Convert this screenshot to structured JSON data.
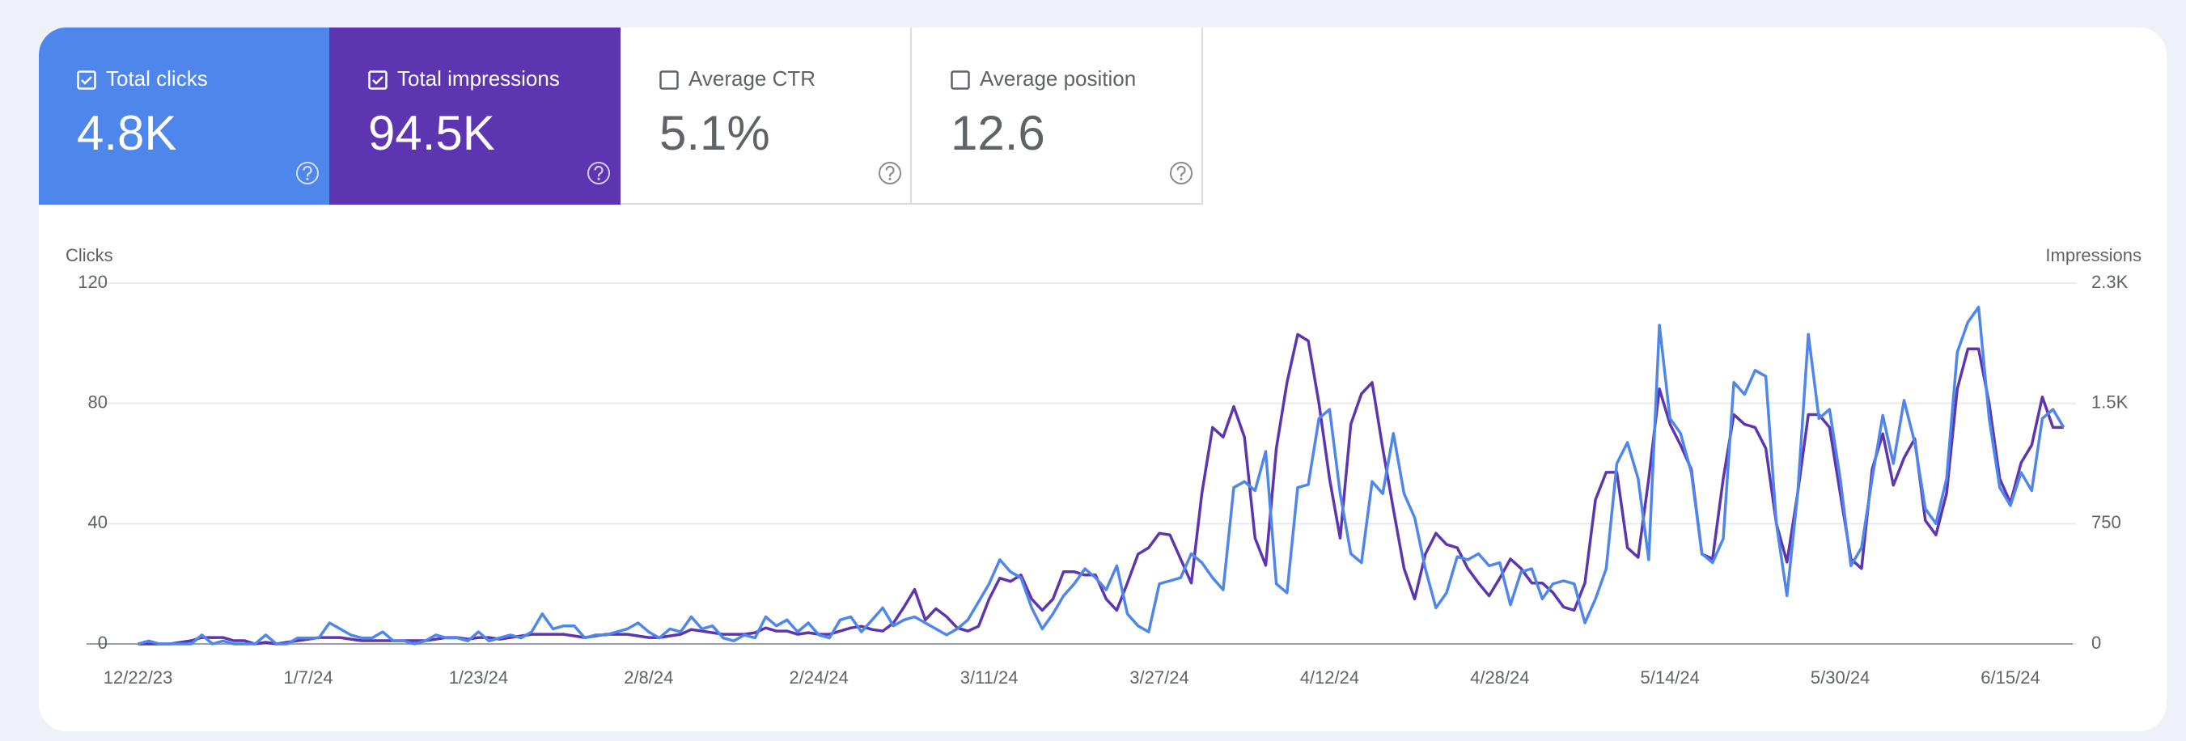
{
  "cards": [
    {
      "label": "Total clicks",
      "value": "4.8K",
      "checked": true
    },
    {
      "label": "Total impressions",
      "value": "94.5K",
      "checked": true
    },
    {
      "label": "Average CTR",
      "value": "5.1%",
      "checked": false
    },
    {
      "label": "Average position",
      "value": "12.6",
      "checked": false
    }
  ],
  "chart_data": {
    "type": "line",
    "y_label": "Clicks",
    "y2_label": "Impressions",
    "categories": [
      "12/22/23",
      null,
      null,
      null,
      null,
      null,
      null,
      null,
      null,
      null,
      null,
      null,
      null,
      null,
      null,
      null,
      "1/7/24",
      null,
      null,
      null,
      null,
      null,
      null,
      null,
      null,
      null,
      null,
      null,
      null,
      null,
      null,
      null,
      "1/23/24",
      null,
      null,
      null,
      null,
      null,
      null,
      null,
      null,
      null,
      null,
      null,
      null,
      null,
      null,
      null,
      "2/8/24",
      null,
      null,
      null,
      null,
      null,
      null,
      null,
      null,
      null,
      null,
      null,
      null,
      null,
      null,
      null,
      "2/24/24",
      null,
      null,
      null,
      null,
      null,
      null,
      null,
      null,
      null,
      null,
      null,
      null,
      null,
      null,
      null,
      "3/11/24",
      null,
      null,
      null,
      null,
      null,
      null,
      null,
      null,
      null,
      null,
      null,
      null,
      null,
      null,
      null,
      "3/27/24",
      null,
      null,
      null,
      null,
      null,
      null,
      null,
      null,
      null,
      null,
      null,
      null,
      null,
      null,
      null,
      "4/12/24",
      null,
      null,
      null,
      null,
      null,
      null,
      null,
      null,
      null,
      null,
      null,
      null,
      null,
      null,
      null,
      "4/28/24",
      null,
      null,
      null,
      null,
      null,
      null,
      null,
      null,
      null,
      null,
      null,
      null,
      null,
      null,
      null,
      "5/14/24",
      null,
      null,
      null,
      null,
      null,
      null,
      null,
      null,
      null,
      null,
      null,
      null,
      null,
      null,
      null,
      "5/30/24",
      null,
      null,
      null,
      null,
      null,
      null,
      null,
      null,
      null,
      null,
      null,
      null,
      null,
      null,
      null,
      "6/15/24",
      null,
      null,
      null,
      null,
      null
    ],
    "series": [
      {
        "name": "Clicks",
        "color": "#4f86ec",
        "values": [
          0,
          1,
          0,
          0,
          0,
          0,
          3,
          0,
          1,
          0,
          0,
          0,
          3,
          0,
          0,
          2,
          2,
          2,
          7,
          5,
          3,
          2,
          2,
          4,
          1,
          1,
          0,
          1,
          3,
          2,
          2,
          1,
          4,
          1,
          2,
          3,
          2,
          4,
          10,
          5,
          6,
          6,
          2,
          3,
          3,
          4,
          5,
          7,
          4,
          2,
          5,
          4,
          9,
          5,
          6,
          2,
          1,
          3,
          2,
          9,
          6,
          8,
          4,
          7,
          3,
          2,
          8,
          9,
          4,
          8,
          12,
          6,
          8,
          9,
          7,
          5,
          3,
          5,
          8,
          14,
          20,
          28,
          24,
          22,
          12,
          5,
          10,
          16,
          20,
          25,
          22,
          18,
          26,
          10,
          6,
          4,
          20,
          21,
          22,
          30,
          27,
          22,
          18,
          52,
          54,
          51,
          64,
          20,
          17,
          52,
          53,
          75,
          78,
          50,
          30,
          27,
          54,
          50,
          70,
          50,
          42,
          25,
          12,
          17,
          29,
          28,
          30,
          26,
          27,
          13,
          24,
          25,
          15,
          20,
          21,
          20,
          7,
          15,
          25,
          60,
          67,
          55,
          28,
          106,
          75,
          70,
          57,
          30,
          27,
          35,
          87,
          83,
          91,
          89,
          40,
          16,
          50,
          103,
          75,
          78,
          55,
          26,
          32,
          55,
          76,
          60,
          81,
          67,
          45,
          40,
          55,
          97,
          107,
          112,
          75,
          52,
          46,
          57,
          51,
          75,
          78,
          72
        ]
      },
      {
        "name": "Impressions",
        "color": "#5e35b1",
        "axis": "y2",
        "values": [
          0,
          0,
          0,
          0,
          10,
          20,
          40,
          40,
          40,
          20,
          20,
          0,
          10,
          0,
          10,
          20,
          30,
          40,
          40,
          40,
          30,
          20,
          20,
          20,
          20,
          20,
          20,
          20,
          30,
          40,
          40,
          30,
          40,
          40,
          30,
          40,
          50,
          60,
          60,
          60,
          60,
          50,
          40,
          50,
          60,
          60,
          60,
          50,
          40,
          40,
          50,
          60,
          90,
          80,
          70,
          60,
          60,
          60,
          70,
          100,
          80,
          80,
          60,
          70,
          60,
          60,
          80,
          100,
          110,
          90,
          80,
          130,
          230,
          340,
          150,
          220,
          170,
          100,
          80,
          110,
          280,
          410,
          390,
          430,
          280,
          210,
          280,
          450,
          450,
          430,
          430,
          280,
          210,
          380,
          560,
          600,
          690,
          680,
          530,
          380,
          940,
          1350,
          1290,
          1480,
          1290,
          660,
          490,
          1220,
          1630,
          1930,
          1890,
          1500,
          1030,
          660,
          1370,
          1560,
          1630,
          1220,
          840,
          470,
          280,
          560,
          690,
          620,
          600,
          470,
          380,
          300,
          410,
          530,
          470,
          380,
          380,
          320,
          230,
          210,
          380,
          900,
          1070,
          1070,
          600,
          540,
          1030,
          1590,
          1370,
          1240,
          1090,
          560,
          530,
          1030,
          1430,
          1370,
          1350,
          1220,
          750,
          510,
          940,
          1430,
          1430,
          1350,
          940,
          530,
          470,
          1090,
          1310,
          990,
          1160,
          1280,
          770,
          680,
          940,
          1590,
          1840,
          1840,
          1500,
          1030,
          880,
          1130,
          1240,
          1540,
          1350,
          1350
        ]
      }
    ],
    "ylim": [
      0,
      120
    ],
    "yticks": [
      0,
      40,
      80,
      120
    ],
    "y2lim": [
      0,
      2250
    ],
    "y2ticks": [
      0,
      750,
      {
        "value": 1500,
        "label": "1.5K"
      },
      {
        "value": 2250,
        "label": "2.3K"
      }
    ],
    "grid": true
  }
}
